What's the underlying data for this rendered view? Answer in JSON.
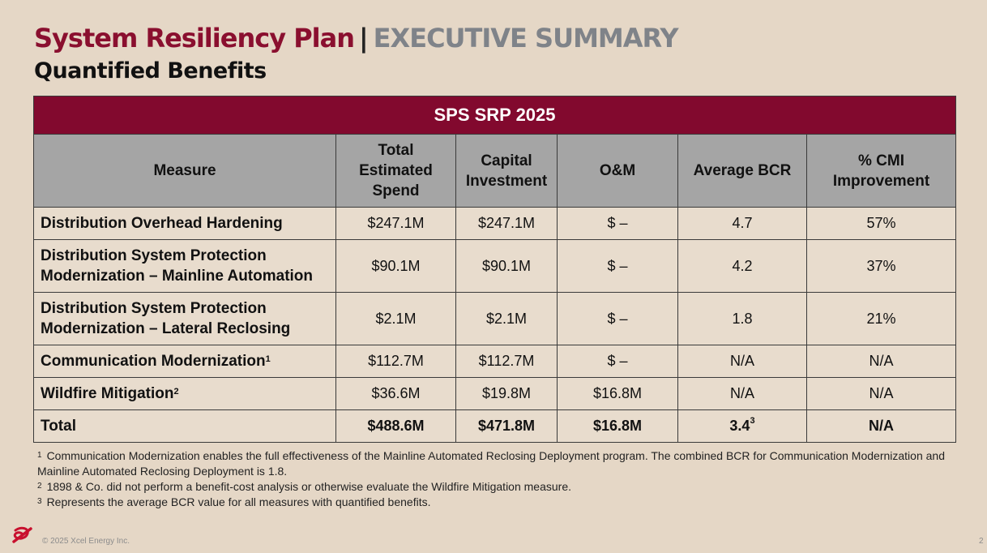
{
  "header": {
    "title": "System Resiliency Plan",
    "separator": "|",
    "section": "EXECUTIVE SUMMARY",
    "subtitle": "Quantified Benefits"
  },
  "table": {
    "banner": "SPS SRP 2025",
    "columns": [
      "Measure",
      "Total Estimated Spend",
      "Capital Investment",
      "O&M",
      "Average BCR",
      "% CMI Improvement"
    ],
    "rows": [
      {
        "measure": "Distribution Overhead Hardening",
        "sup": "",
        "total": "$247.1M",
        "capital": "$247.1M",
        "om": "$ –",
        "bcr": "4.7",
        "bcr_sup": "",
        "cmi": "57%"
      },
      {
        "measure": "Distribution System Protection Modernization – Mainline Automation",
        "sup": "",
        "total": "$90.1M",
        "capital": "$90.1M",
        "om": "$ –",
        "bcr": "4.2",
        "bcr_sup": "",
        "cmi": "37%"
      },
      {
        "measure": "Distribution System Protection Modernization – Lateral Reclosing",
        "sup": "",
        "total": "$2.1M",
        "capital": "$2.1M",
        "om": "$ –",
        "bcr": "1.8",
        "bcr_sup": "",
        "cmi": "21%"
      },
      {
        "measure": "Communication Modernization",
        "sup": "1",
        "total": "$112.7M",
        "capital": "$112.7M",
        "om": "$ –",
        "bcr": "N/A",
        "bcr_sup": "",
        "cmi": "N/A"
      },
      {
        "measure": "Wildfire Mitigation",
        "sup": "2",
        "total": "$36.6M",
        "capital": "$19.8M",
        "om": "$16.8M",
        "bcr": "N/A",
        "bcr_sup": "",
        "cmi": "N/A"
      },
      {
        "measure": "Total",
        "sup": "",
        "total": "$488.6M",
        "capital": "$471.8M",
        "om": "$16.8M",
        "bcr": "3.4",
        "bcr_sup": "3",
        "cmi": "N/A"
      }
    ]
  },
  "footnotes": [
    {
      "mark": "1",
      "text": "Communication Modernization enables the full effectiveness of the Mainline Automated Reclosing Deployment program. The combined BCR for Communication Modernization and Mainline Automated Reclosing Deployment is 1.8."
    },
    {
      "mark": "2",
      "text": "1898 & Co. did not perform a benefit-cost analysis or otherwise evaluate the Wildfire Mitigation measure."
    },
    {
      "mark": "3",
      "text": "Represents the average BCR value for all measures with quantified benefits."
    }
  ],
  "footer": {
    "copyright": "© 2025 Xcel Energy Inc.",
    "page_number": "2",
    "logo_icon": "xcel-energy-logo-icon"
  },
  "colors": {
    "brand": "#8a0f2f",
    "banner": "#82092e",
    "header_gray": "#a5a5a5",
    "background": "#e5d7c6"
  }
}
